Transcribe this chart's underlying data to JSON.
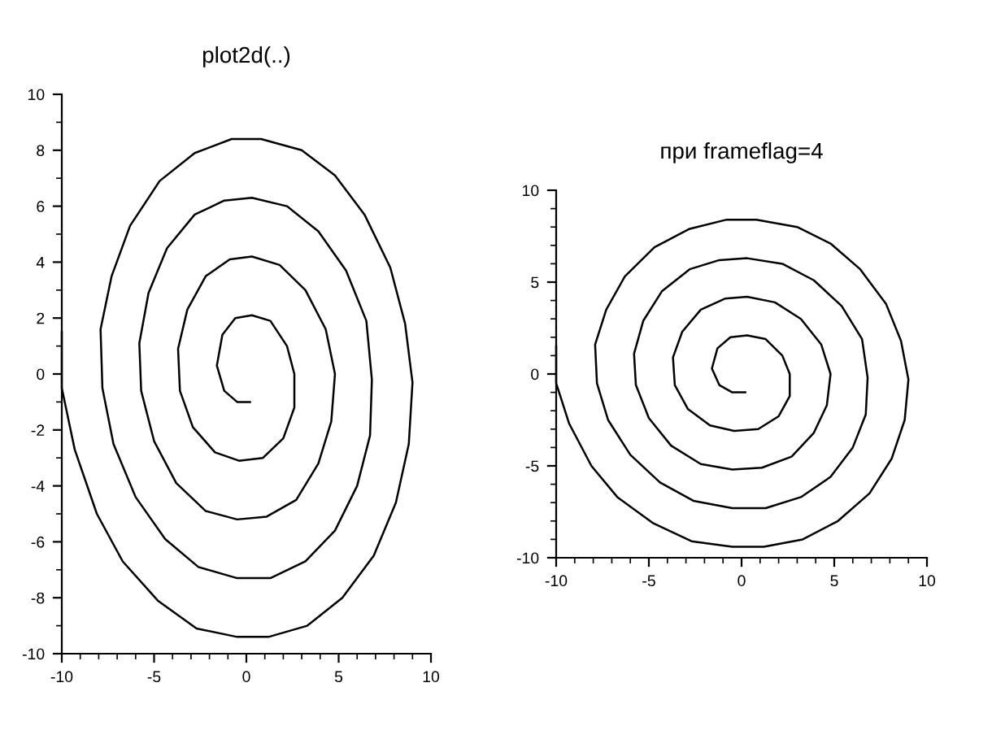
{
  "chart_data": [
    {
      "type": "line",
      "title": "plot2d(..)",
      "xlim": [
        -10,
        10
      ],
      "ylim": [
        -10,
        10
      ],
      "xticks": [
        -10,
        -5,
        0,
        5,
        10
      ],
      "yticks": [
        -10,
        -8,
        -6,
        -4,
        -2,
        0,
        2,
        4,
        6,
        8,
        10
      ],
      "grid": false,
      "marker": "none",
      "line_style": "solid",
      "series": [
        {
          "color": "#000000",
          "x": [
            0.2,
            -0.5,
            -1.2,
            -1.6,
            -1.3,
            -0.6,
            0.3,
            1.3,
            2.2,
            2.6,
            2.6,
            2.0,
            0.9,
            -0.4,
            -1.7,
            -2.9,
            -3.6,
            -3.7,
            -3.2,
            -2.2,
            -0.9,
            0.3,
            1.8,
            3.2,
            4.3,
            4.8,
            4.6,
            3.9,
            2.7,
            1.1,
            -0.5,
            -2.2,
            -3.8,
            -5.0,
            -5.7,
            -5.8,
            -5.3,
            -4.3,
            -2.8,
            -1.2,
            0.3,
            2.2,
            3.9,
            5.4,
            6.5,
            6.8,
            6.7,
            6.0,
            4.8,
            3.2,
            1.3,
            -0.5,
            -2.6,
            -4.4,
            -6.0,
            -7.2,
            -7.8,
            -7.9,
            -7.3,
            -6.3,
            -4.7,
            -2.8,
            -0.8,
            0.8,
            3.0,
            4.8,
            6.4,
            7.8,
            8.6,
            9.0,
            8.8,
            8.1,
            6.9,
            5.2,
            3.3,
            1.2,
            -0.5,
            -2.7,
            -4.8,
            -6.7,
            -8.1,
            -9.3,
            -10.0,
            -10.0
          ],
          "values": [
            -1.0,
            -1.0,
            -0.6,
            0.3,
            1.4,
            2.0,
            2.1,
            1.9,
            1.0,
            0.0,
            -1.2,
            -2.3,
            -3.0,
            -3.1,
            -2.8,
            -1.9,
            -0.6,
            0.9,
            2.3,
            3.5,
            4.1,
            4.2,
            3.9,
            3.0,
            1.6,
            0.0,
            -1.7,
            -3.2,
            -4.5,
            -5.1,
            -5.2,
            -4.9,
            -3.9,
            -2.4,
            -0.6,
            1.1,
            2.9,
            4.5,
            5.7,
            6.2,
            6.3,
            6.0,
            5.1,
            3.7,
            1.9,
            -0.2,
            -2.2,
            -4.0,
            -5.6,
            -6.7,
            -7.3,
            -7.3,
            -6.9,
            -5.9,
            -4.4,
            -2.5,
            -0.5,
            1.6,
            3.5,
            5.3,
            6.9,
            7.9,
            8.4,
            8.4,
            8.0,
            7.1,
            5.7,
            3.8,
            1.8,
            -0.3,
            -2.5,
            -4.6,
            -6.5,
            -8.0,
            -9.0,
            -9.4,
            -9.4,
            -9.1,
            -8.1,
            -6.7,
            -5.0,
            -2.7,
            -0.5,
            1.5
          ]
        }
      ]
    },
    {
      "type": "line",
      "title": "при frameflag=4",
      "xlim": [
        -10,
        10
      ],
      "ylim": [
        -10,
        10
      ],
      "xticks": [
        -10,
        -5,
        0,
        5,
        10
      ],
      "yticks": [
        -10,
        -5,
        0,
        5,
        10
      ],
      "grid": false,
      "marker": "none",
      "line_style": "solid",
      "series": [
        {
          "color": "#000000",
          "x": [
            0.2,
            -0.5,
            -1.2,
            -1.6,
            -1.3,
            -0.6,
            0.3,
            1.3,
            2.2,
            2.6,
            2.6,
            2.0,
            0.9,
            -0.4,
            -1.7,
            -2.9,
            -3.6,
            -3.7,
            -3.2,
            -2.2,
            -0.9,
            0.3,
            1.8,
            3.2,
            4.3,
            4.8,
            4.6,
            3.9,
            2.7,
            1.1,
            -0.5,
            -2.2,
            -3.8,
            -5.0,
            -5.7,
            -5.8,
            -5.3,
            -4.3,
            -2.8,
            -1.2,
            0.3,
            2.2,
            3.9,
            5.4,
            6.5,
            6.8,
            6.7,
            6.0,
            4.8,
            3.2,
            1.3,
            -0.5,
            -2.6,
            -4.4,
            -6.0,
            -7.2,
            -7.8,
            -7.9,
            -7.3,
            -6.3,
            -4.7,
            -2.8,
            -0.8,
            0.8,
            3.0,
            4.8,
            6.4,
            7.8,
            8.6,
            9.0,
            8.8,
            8.1,
            6.9,
            5.2,
            3.3,
            1.2,
            -0.5,
            -2.7,
            -4.8,
            -6.7,
            -8.1,
            -9.3,
            -10.0,
            -10.0
          ],
          "values": [
            -1.0,
            -1.0,
            -0.6,
            0.3,
            1.4,
            2.0,
            2.1,
            1.9,
            1.0,
            0.0,
            -1.2,
            -2.3,
            -3.0,
            -3.1,
            -2.8,
            -1.9,
            -0.6,
            0.9,
            2.3,
            3.5,
            4.1,
            4.2,
            3.9,
            3.0,
            1.6,
            0.0,
            -1.7,
            -3.2,
            -4.5,
            -5.1,
            -5.2,
            -4.9,
            -3.9,
            -2.4,
            -0.6,
            1.1,
            2.9,
            4.5,
            5.7,
            6.2,
            6.3,
            6.0,
            5.1,
            3.7,
            1.9,
            -0.2,
            -2.2,
            -4.0,
            -5.6,
            -6.7,
            -7.3,
            -7.3,
            -6.9,
            -5.9,
            -4.4,
            -2.5,
            -0.5,
            1.6,
            3.5,
            5.3,
            6.9,
            7.9,
            8.4,
            8.4,
            8.0,
            7.1,
            5.7,
            3.8,
            1.8,
            -0.3,
            -2.5,
            -4.6,
            -6.5,
            -8.0,
            -9.0,
            -9.4,
            -9.4,
            -9.1,
            -8.1,
            -6.7,
            -5.0,
            -2.7,
            -0.5,
            1.5
          ]
        }
      ]
    }
  ]
}
